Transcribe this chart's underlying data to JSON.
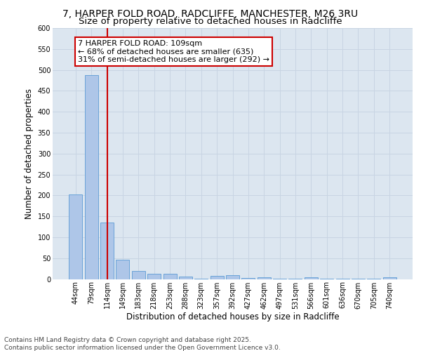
{
  "title_line1": "7, HARPER FOLD ROAD, RADCLIFFE, MANCHESTER, M26 3RU",
  "title_line2": "Size of property relative to detached houses in Radcliffe",
  "xlabel": "Distribution of detached houses by size in Radcliffe",
  "ylabel": "Number of detached properties",
  "categories": [
    "44sqm",
    "79sqm",
    "114sqm",
    "149sqm",
    "183sqm",
    "218sqm",
    "253sqm",
    "288sqm",
    "323sqm",
    "357sqm",
    "392sqm",
    "427sqm",
    "462sqm",
    "497sqm",
    "531sqm",
    "566sqm",
    "601sqm",
    "636sqm",
    "670sqm",
    "705sqm",
    "740sqm"
  ],
  "values": [
    203,
    487,
    135,
    46,
    20,
    13,
    12,
    6,
    1,
    8,
    10,
    2,
    5,
    1,
    1,
    5,
    1,
    1,
    1,
    1,
    4
  ],
  "bar_color": "#aec6e8",
  "bar_edge_color": "#5b9bd5",
  "vline_bin_index": 2,
  "vline_color": "#cc0000",
  "annotation_text": "7 HARPER FOLD ROAD: 109sqm\n← 68% of detached houses are smaller (635)\n31% of semi-detached houses are larger (292) →",
  "annotation_box_color": "#ffffff",
  "annotation_box_edge": "#cc0000",
  "ylim": [
    0,
    600
  ],
  "yticks": [
    0,
    50,
    100,
    150,
    200,
    250,
    300,
    350,
    400,
    450,
    500,
    550,
    600
  ],
  "grid_color": "#c8d4e3",
  "background_color": "#dce6f0",
  "footnote": "Contains HM Land Registry data © Crown copyright and database right 2025.\nContains public sector information licensed under the Open Government Licence v3.0.",
  "title_fontsize": 10,
  "subtitle_fontsize": 9.5,
  "axis_label_fontsize": 8.5,
  "tick_fontsize": 7,
  "annotation_fontsize": 8,
  "footnote_fontsize": 6.5
}
